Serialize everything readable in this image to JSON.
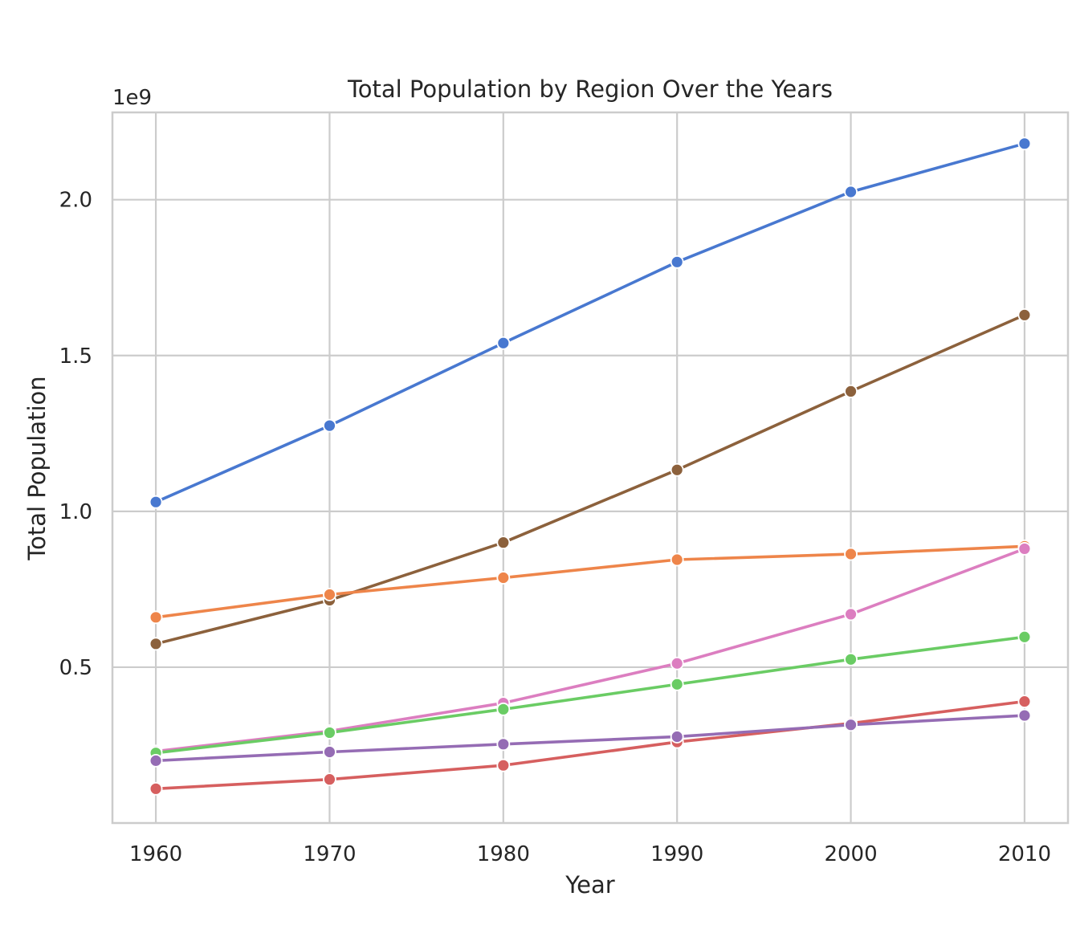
{
  "chart_data": {
    "type": "line",
    "title": "Total Population by Region Over the Years",
    "xlabel": "Year",
    "ylabel": "Total Population",
    "y_offset_label": "1e9",
    "x": [
      1960,
      1970,
      1980,
      1990,
      2000,
      2010
    ],
    "x_ticks": [
      "1960",
      "1970",
      "1980",
      "1990",
      "2000",
      "2010"
    ],
    "y_ticks": [
      0.5,
      1.0,
      1.5,
      2.0
    ],
    "y_tick_labels": [
      "0.5",
      "1.0",
      "1.5",
      "2.0"
    ],
    "xlim": [
      1957.5,
      2012.5
    ],
    "ylim": [
      0.0,
      2.28
    ],
    "y_unit_scale": 1000000000,
    "grid": true,
    "legend": "none visible",
    "series": [
      {
        "color": "#4878d0",
        "values": [
          1.03,
          1.275,
          1.54,
          1.8,
          2.025,
          2.18
        ]
      },
      {
        "color": "#8c613c",
        "values": [
          0.575,
          0.715,
          0.9,
          1.133,
          1.385,
          1.63
        ]
      },
      {
        "color": "#ee854a",
        "values": [
          0.66,
          0.733,
          0.787,
          0.845,
          0.863,
          0.888
        ]
      },
      {
        "color": "#dc7ec0",
        "values": [
          0.23,
          0.295,
          0.385,
          0.512,
          0.67,
          0.88
        ]
      },
      {
        "color": "#6acc64",
        "values": [
          0.225,
          0.29,
          0.365,
          0.445,
          0.525,
          0.597
        ]
      },
      {
        "color": "#d65f5f",
        "values": [
          0.11,
          0.14,
          0.185,
          0.26,
          0.32,
          0.39
        ]
      },
      {
        "color": "#956cb4",
        "values": [
          0.2,
          0.228,
          0.253,
          0.277,
          0.315,
          0.345
        ]
      }
    ]
  }
}
